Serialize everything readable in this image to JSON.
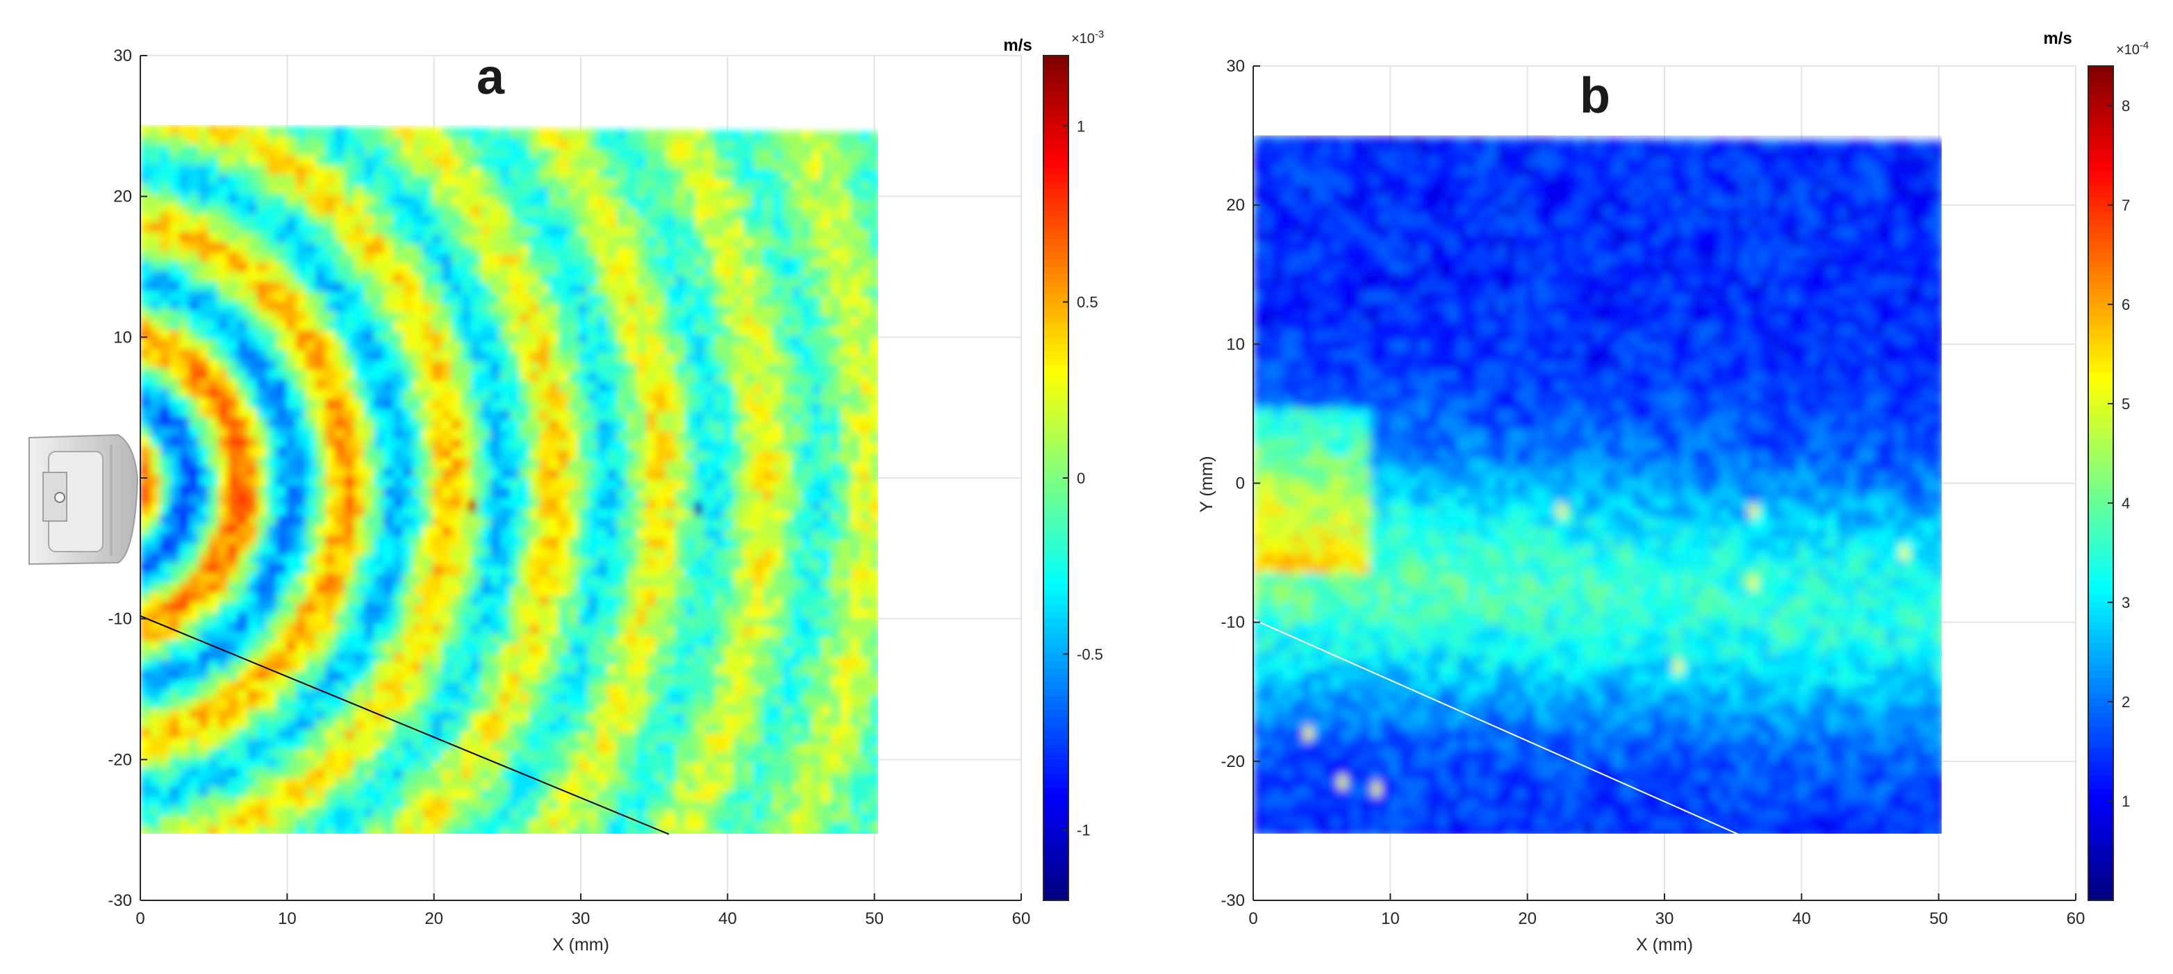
{
  "colors": {
    "axis": "#262626",
    "grid": "#e3e3e3",
    "diag_line_a": "#000000",
    "diag_line_b": "#ffffff",
    "jet": [
      "#00007f",
      "#0000ff",
      "#007fff",
      "#00ffff",
      "#7fff7f",
      "#ffff00",
      "#ff7f00",
      "#ff0000",
      "#7f0000"
    ]
  },
  "icons": {
    "transducer": "ultrasound-probe-icon"
  },
  "chart_data": [
    {
      "type": "heatmap",
      "panel_label": "a",
      "xlabel": "X (mm)",
      "ylabel": "",
      "xlim": [
        0,
        60
      ],
      "ylim": [
        -30,
        30
      ],
      "x_ticks": [
        "0",
        "10",
        "20",
        "30",
        "40",
        "50",
        "60"
      ],
      "y_ticks": [
        "30",
        "20",
        "10",
        "0",
        "-10",
        "-20",
        "-30"
      ],
      "grid": true,
      "field_extent": {
        "x": [
          0,
          50
        ],
        "y": [
          -25.3,
          25
        ]
      },
      "diagonal_line": [
        [
          0,
          -9.8
        ],
        [
          36,
          -25.3
        ]
      ],
      "pattern": "wavefronts",
      "colorbar": {
        "units": "m/s",
        "exponent_prefix": "×10",
        "exponent": "-3",
        "range": [
          -1.2,
          1.2
        ],
        "ticks": [
          "1",
          "0.5",
          "0",
          "-0.5",
          "-1"
        ]
      }
    },
    {
      "type": "heatmap",
      "panel_label": "b",
      "xlabel": "X (mm)",
      "ylabel": "Y (mm)",
      "xlim": [
        0,
        60
      ],
      "ylim": [
        -30,
        30
      ],
      "x_ticks": [
        "0",
        "10",
        "20",
        "30",
        "40",
        "50",
        "60"
      ],
      "y_ticks": [
        "30",
        "20",
        "10",
        "0",
        "-10",
        "-20",
        "-30"
      ],
      "grid": true,
      "field_extent": {
        "x": [
          0,
          50
        ],
        "y": [
          -25.3,
          25
        ]
      },
      "diagonal_line": [
        [
          0,
          -9.8
        ],
        [
          35.5,
          -25.3
        ]
      ],
      "pattern": "magnitude",
      "colorbar": {
        "units": "m/s",
        "exponent_prefix": "×10",
        "exponent": "-4",
        "range": [
          0,
          8.4
        ],
        "ticks": [
          "8",
          "7",
          "6",
          "5",
          "4",
          "3",
          "2",
          "1"
        ]
      }
    }
  ]
}
